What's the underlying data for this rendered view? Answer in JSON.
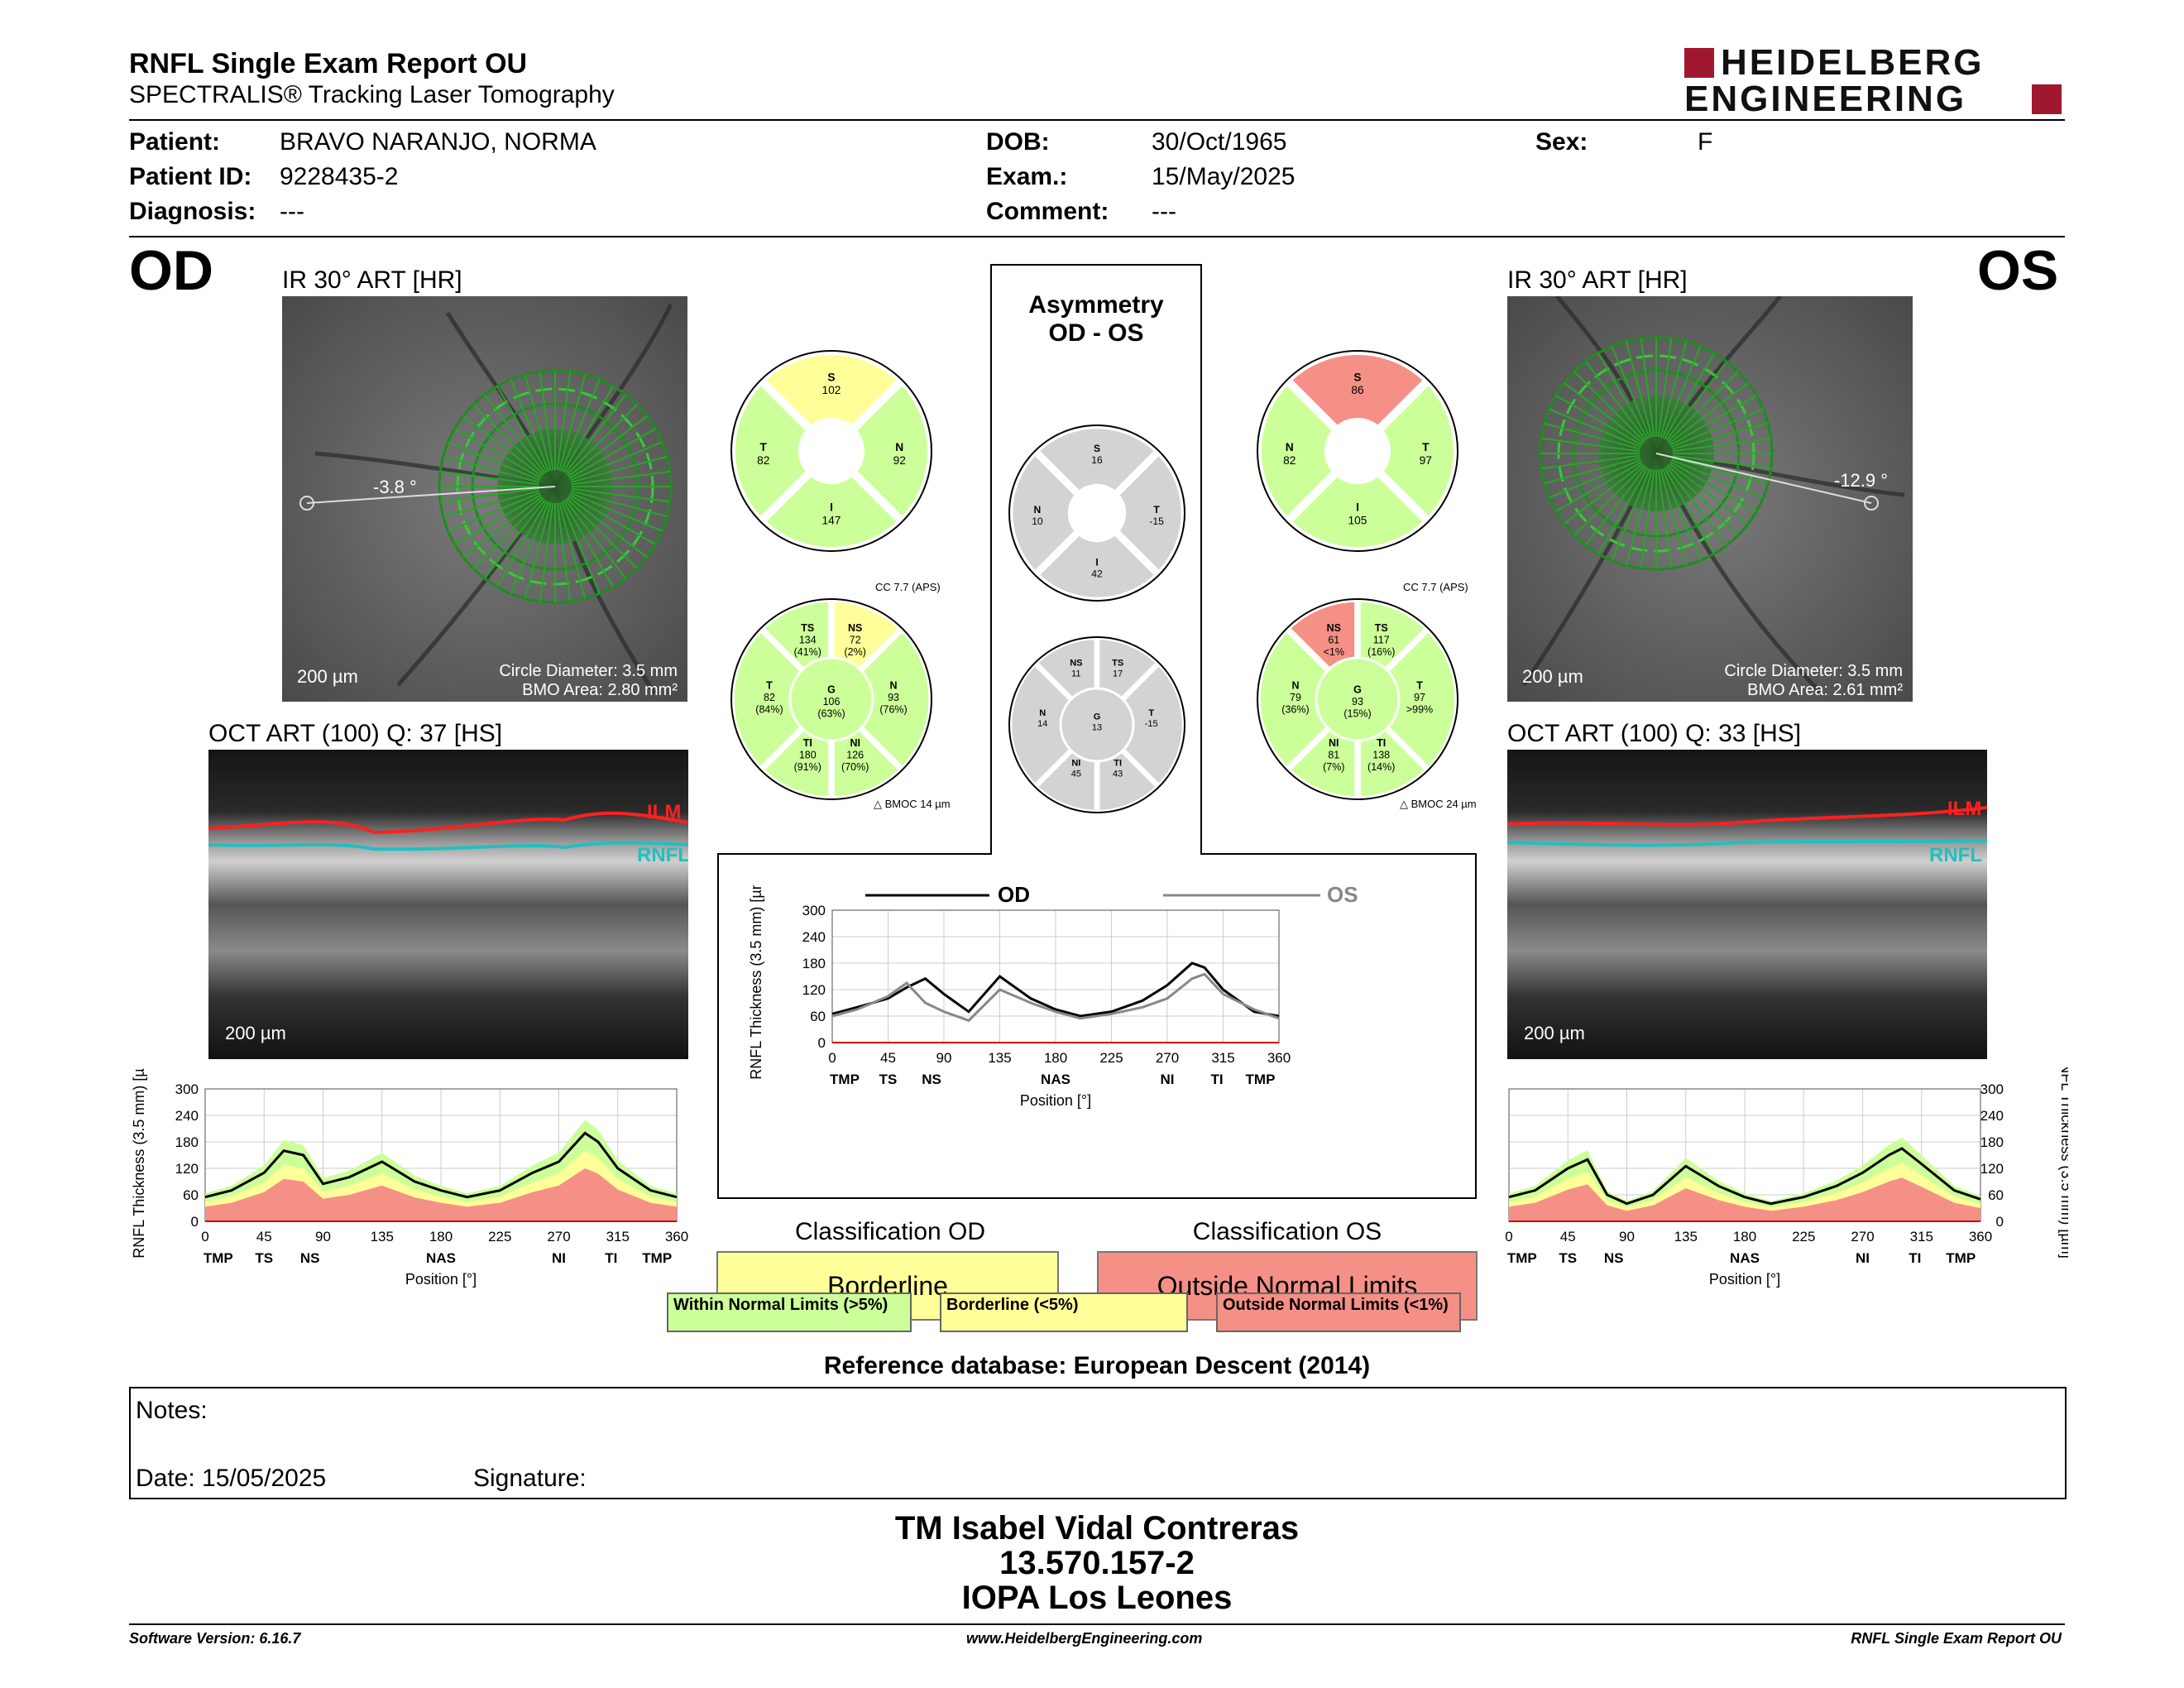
{
  "header": {
    "title": "RNFL Single Exam Report OU",
    "subtitle": "SPECTRALIS® Tracking Laser Tomography",
    "logo_line1": "HEIDELBERG",
    "logo_line2": "ENGINEERING"
  },
  "patient": {
    "patient_label": "Patient:",
    "patient_value": "BRAVO NARANJO, NORMA",
    "id_label": "Patient ID:",
    "id_value": "9228435-2",
    "diag_label": "Diagnosis:",
    "diag_value": "---",
    "dob_label": "DOB:",
    "dob_value": "30/Oct/1965",
    "exam_label": "Exam.:",
    "exam_value": "15/May/2025",
    "comment_label": "Comment:",
    "comment_value": "---",
    "sex_label": "Sex:",
    "sex_value": "F"
  },
  "od": {
    "eye": "OD",
    "ir_caption": "IR 30° ART [HR]",
    "angle": "-3.8 °",
    "scale": "200 µm",
    "circle_diameter": "Circle Diameter: 3.5 mm",
    "bmo_area": "BMO Area: 2.80 mm²",
    "oct_caption": "OCT ART (100) Q: 37 [HS]",
    "oct_scale": "200 µm",
    "ilm": "ILM",
    "rnfl": "RNFL",
    "cc": "CC 7.7 (APS)",
    "bmoc": "BMOC 14 µm",
    "classification_title": "Classification OD",
    "classification": "Borderline",
    "quad": {
      "S": "102",
      "T": "82",
      "N": "92",
      "I": "147"
    },
    "sect": {
      "TS": [
        "134",
        "(41%)"
      ],
      "NS": [
        "72",
        "(2%)"
      ],
      "T": [
        "82",
        "(84%)"
      ],
      "G": [
        "106",
        "(63%)"
      ],
      "N": [
        "93",
        "(76%)"
      ],
      "TI": [
        "180",
        "(91%)"
      ],
      "NI": [
        "126",
        "(70%)"
      ]
    }
  },
  "os": {
    "eye": "OS",
    "ir_caption": "IR 30° ART [HR]",
    "angle": "-12.9 °",
    "scale": "200 µm",
    "circle_diameter": "Circle Diameter: 3.5 mm",
    "bmo_area": "BMO Area: 2.61 mm²",
    "oct_caption": "OCT ART (100) Q: 33 [HS]",
    "oct_scale": "200 µm",
    "ilm": "ILM",
    "rnfl": "RNFL",
    "cc": "CC 7.7 (APS)",
    "bmoc": "BMOC 24 µm",
    "classification_title": "Classification OS",
    "classification": "Outside Normal Limits",
    "quad": {
      "S": "86",
      "N": "82",
      "T": "97",
      "I": "105"
    },
    "sect": {
      "NS": [
        "61",
        "<1%"
      ],
      "TS": [
        "117",
        "(16%)"
      ],
      "N": [
        "79",
        "(36%)"
      ],
      "G": [
        "93",
        "(15%)"
      ],
      "T": [
        "97",
        ">99%"
      ],
      "NI": [
        "81",
        "(7%)"
      ],
      "TI": [
        "138",
        "(14%)"
      ]
    }
  },
  "asym": {
    "title1": "Asymmetry",
    "title2": "OD - OS",
    "quad": {
      "S": "16",
      "N": "10",
      "T": "-15",
      "I": "42"
    },
    "sect": {
      "NS": "11",
      "TS": "17",
      "N": "14",
      "G": "13",
      "T": "-15",
      "NI": "45",
      "TI": "43"
    }
  },
  "legend": {
    "within": "Within Normal Limits (>5%)",
    "borderline": "Borderline (<5%)",
    "outside": "Outside Normal Limits (<1%)"
  },
  "colors": {
    "green": "#ccff99",
    "yellow": "#ffff99",
    "red": "#f59087",
    "grey": "#d3d3d3"
  },
  "reference_db": "Reference database: European Descent (2014)",
  "notes": {
    "notes_label": "Notes:",
    "date_label": "Date: 15/05/2025",
    "signature_label": "Signature:"
  },
  "signer": {
    "name": "TM Isabel Vidal Contreras",
    "rut": "13.570.157-2",
    "org": "IOPA Los Leones"
  },
  "footer": {
    "left": "Software Version: 6.16.7",
    "center": "www.HeidelbergEngineering.com",
    "right": "RNFL Single Exam Report OU"
  },
  "chart_data": [
    {
      "type": "line",
      "title": "",
      "legend": [
        "OD",
        "OS"
      ],
      "ylabel": "RNFL Thickness (3.5 mm) [µm]",
      "xlabel": "Position [°]",
      "ylim": [
        0,
        300
      ],
      "yticks": [
        "0",
        "60",
        "120",
        "180",
        "240",
        "300"
      ],
      "xticks": [
        "0",
        "45",
        "90",
        "135",
        "180",
        "225",
        "270",
        "315",
        "360"
      ],
      "sectors": [
        "TMP",
        "TS",
        "NS",
        "NAS",
        "NI",
        "TI",
        "TMP"
      ],
      "x": [
        0,
        20,
        45,
        60,
        75,
        90,
        110,
        135,
        160,
        180,
        200,
        225,
        250,
        270,
        290,
        300,
        315,
        340,
        360
      ],
      "series": [
        {
          "name": "OD",
          "values": [
            65,
            80,
            100,
            125,
            145,
            110,
            70,
            150,
            100,
            75,
            60,
            70,
            95,
            130,
            180,
            170,
            120,
            70,
            60
          ]
        },
        {
          "name": "OS",
          "values": [
            60,
            75,
            105,
            135,
            90,
            70,
            50,
            120,
            90,
            70,
            55,
            65,
            80,
            100,
            145,
            155,
            110,
            75,
            55
          ]
        }
      ]
    },
    {
      "type": "line",
      "title": "",
      "ylabel": "RNFL Thickness (3.5 mm) [µm]",
      "xlabel": "Position [°]",
      "ylim": [
        0,
        300
      ],
      "yticks": [
        "0",
        "60",
        "120",
        "180",
        "240",
        "300"
      ],
      "xticks": [
        "0",
        "45",
        "90",
        "135",
        "180",
        "225",
        "270",
        "315",
        "360"
      ],
      "sectors": [
        "TMP",
        "TS",
        "NS",
        "NAS",
        "NI",
        "TI",
        "TMP"
      ],
      "x": [
        0,
        20,
        45,
        60,
        75,
        90,
        110,
        135,
        160,
        180,
        200,
        225,
        250,
        270,
        290,
        300,
        315,
        340,
        360
      ],
      "series": [
        {
          "name": "OD",
          "values": [
            55,
            70,
            110,
            160,
            150,
            85,
            100,
            135,
            90,
            70,
            55,
            70,
            110,
            135,
            200,
            180,
            120,
            70,
            55
          ]
        }
      ]
    },
    {
      "type": "line",
      "title": "",
      "ylabel": "RNFL Thickness (3.5 mm) [µm]",
      "xlabel": "Position [°]",
      "ylim": [
        0,
        300
      ],
      "yticks": [
        "0",
        "60",
        "120",
        "180",
        "240",
        "300"
      ],
      "xticks": [
        "0",
        "45",
        "90",
        "135",
        "180",
        "225",
        "270",
        "315",
        "360"
      ],
      "sectors": [
        "TMP",
        "TS",
        "NS",
        "NAS",
        "NI",
        "TI",
        "TMP"
      ],
      "x": [
        0,
        20,
        45,
        60,
        75,
        90,
        110,
        135,
        160,
        180,
        200,
        225,
        250,
        270,
        290,
        300,
        315,
        340,
        360
      ],
      "series": [
        {
          "name": "OS",
          "values": [
            55,
            70,
            120,
            140,
            60,
            40,
            60,
            125,
            80,
            55,
            40,
            55,
            80,
            110,
            150,
            165,
            130,
            70,
            50
          ]
        }
      ]
    }
  ]
}
